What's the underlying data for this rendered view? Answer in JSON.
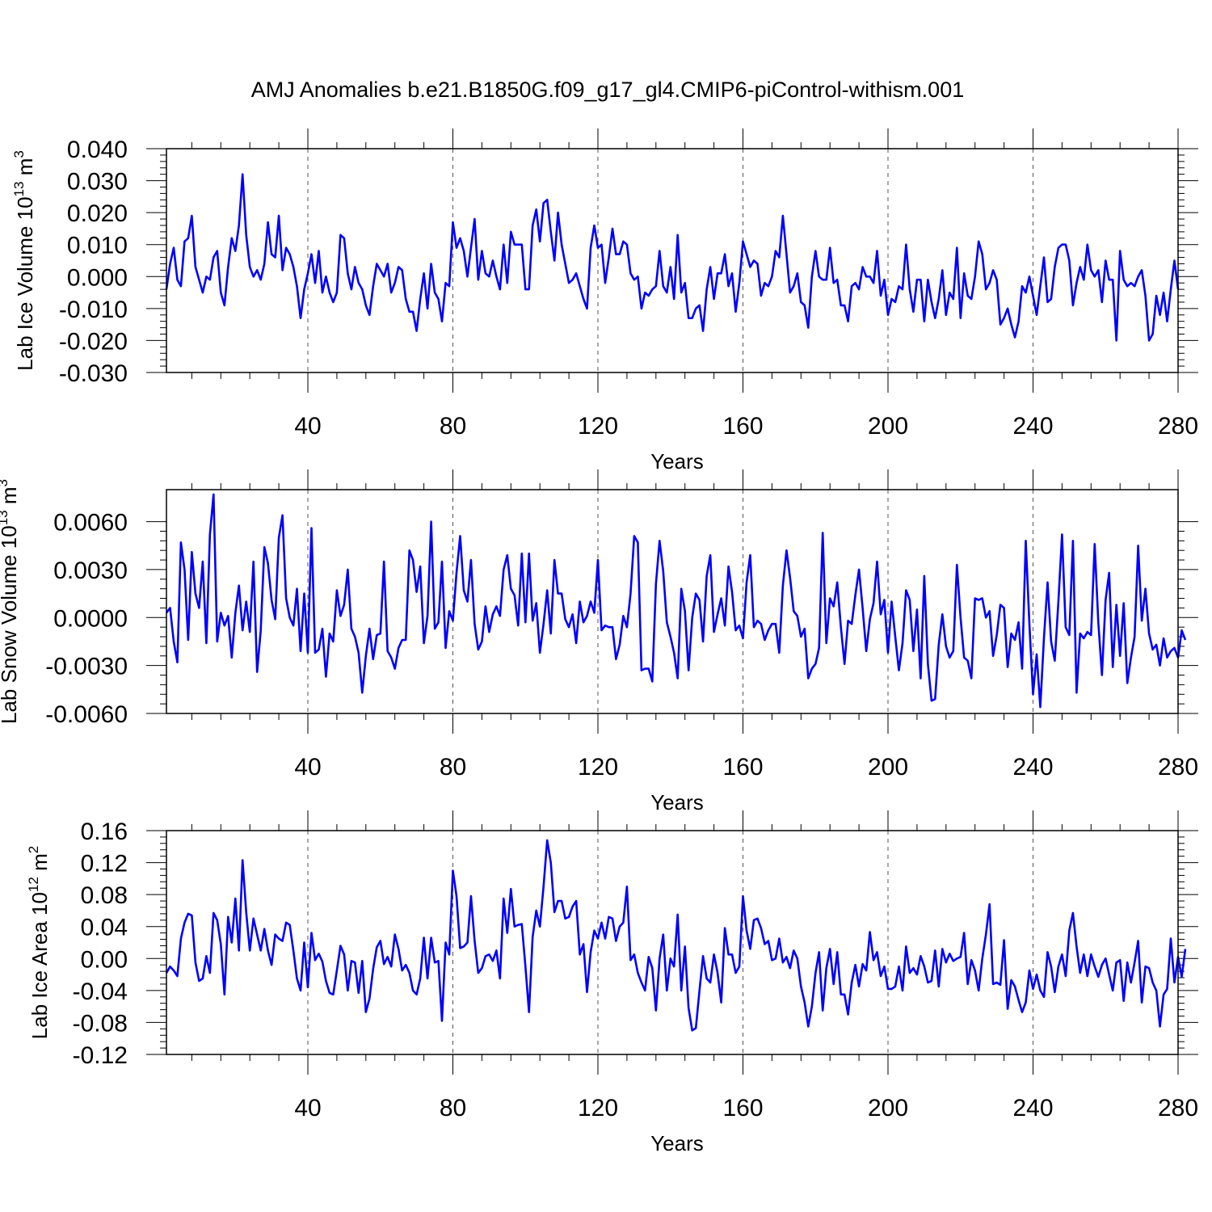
{
  "title": "AMJ Anomalies b.e21.B1850G.f09_g17_gl4.CMIP6-piControl-withism.001",
  "series_color": "#0000ff",
  "chart_data": [
    {
      "type": "line",
      "ylabel": "Lab Ice Volume 10",
      "ylabel_exp": "13",
      "ylabel_unit": " m",
      "ylabel_unit_exp": "3",
      "xlabel": "Years",
      "xlim": [
        1,
        280
      ],
      "ylim": [
        -0.03,
        0.04
      ],
      "xticks": [
        40,
        80,
        120,
        160,
        200,
        240,
        280
      ],
      "xtick_labels": [
        "40",
        "80",
        "120",
        "160",
        "200",
        "240",
        "280"
      ],
      "yticks": [
        -0.03,
        -0.02,
        -0.01,
        0.0,
        0.01,
        0.02,
        0.03,
        0.04
      ],
      "ytick_labels": [
        "-0.030",
        "-0.020",
        "-0.010",
        "0.000",
        "0.010",
        "0.020",
        "0.030",
        "0.040"
      ],
      "grid_x": [
        40,
        80,
        120,
        160,
        200,
        240
      ],
      "x_start": 1,
      "x_step": 1,
      "values": [
        -0.004,
        0.004,
        0.009,
        -0.001,
        -0.003,
        0.011,
        0.012,
        0.019,
        0.003,
        -0.001,
        -0.005,
        0.0,
        -0.001,
        0.006,
        0.008,
        -0.005,
        -0.009,
        0.003,
        0.012,
        0.008,
        0.016,
        0.032,
        0.013,
        0.003,
        0.0,
        0.002,
        -0.001,
        0.004,
        0.017,
        0.007,
        0.006,
        0.019,
        0.002,
        0.009,
        0.007,
        0.003,
        -0.003,
        -0.013,
        -0.004,
        0.001,
        0.007,
        -0.002,
        0.008,
        -0.005,
        0.0,
        -0.005,
        -0.008,
        -0.005,
        0.013,
        0.012,
        0.001,
        -0.004,
        0.003,
        -0.002,
        -0.004,
        -0.009,
        -0.012,
        -0.003,
        0.004,
        0.002,
        0.0,
        0.004,
        -0.005,
        -0.002,
        0.003,
        0.002,
        -0.007,
        -0.011,
        -0.011,
        -0.017,
        -0.007,
        0.001,
        -0.01,
        0.004,
        -0.005,
        -0.007,
        -0.014,
        -0.002,
        -0.003,
        0.017,
        0.009,
        0.012,
        0.008,
        0.0,
        0.009,
        0.018,
        -0.001,
        0.008,
        0.001,
        0.0,
        0.005,
        0.0,
        -0.004,
        0.01,
        -0.002,
        0.014,
        0.01,
        0.01,
        0.01,
        -0.004,
        -0.004,
        0.016,
        0.021,
        0.011,
        0.023,
        0.024,
        0.014,
        0.005,
        0.02,
        0.01,
        0.004,
        -0.002,
        -0.001,
        0.001,
        -0.003,
        -0.007,
        -0.01,
        0.009,
        0.016,
        0.009,
        0.01,
        -0.002,
        0.006,
        0.015,
        0.007,
        0.007,
        0.011,
        0.01,
        0.001,
        -0.001,
        0.0,
        -0.01,
        -0.005,
        -0.006,
        -0.004,
        -0.003,
        0.008,
        -0.003,
        -0.005,
        0.003,
        -0.007,
        0.013,
        -0.005,
        -0.002,
        -0.013,
        -0.013,
        -0.01,
        -0.009,
        -0.017,
        -0.004,
        0.003,
        -0.007,
        0.001,
        0.001,
        0.007,
        -0.003,
        0.001,
        -0.011,
        -0.002,
        0.011,
        0.007,
        0.003,
        0.005,
        0.004,
        -0.006,
        -0.002,
        -0.003,
        0.0,
        0.008,
        0.006,
        0.019,
        0.007,
        -0.005,
        -0.003,
        0.001,
        -0.008,
        -0.009,
        -0.016,
        0.0,
        0.008,
        0.0,
        -0.001,
        -0.001,
        0.009,
        -0.002,
        -0.001,
        -0.009,
        -0.009,
        -0.014,
        -0.003,
        -0.002,
        -0.004,
        0.003,
        0.0,
        0.0,
        -0.002,
        0.008,
        -0.006,
        -0.001,
        -0.012,
        -0.007,
        -0.008,
        -0.003,
        -0.004,
        0.01,
        -0.004,
        -0.011,
        -0.001,
        -0.001,
        -0.014,
        -0.001,
        -0.008,
        -0.013,
        -0.007,
        0.002,
        -0.012,
        -0.005,
        -0.007,
        0.009,
        -0.013,
        0.001,
        -0.006,
        -0.007,
        0.0,
        0.011,
        0.007,
        -0.004,
        -0.002,
        0.002,
        -0.001,
        -0.015,
        -0.013,
        -0.01,
        -0.015,
        -0.019,
        -0.014,
        -0.003,
        -0.005,
        0.0,
        -0.006,
        -0.012,
        -0.003,
        0.006,
        -0.008,
        -0.007,
        0.003,
        0.009,
        0.01,
        0.01,
        0.005,
        -0.009,
        -0.002,
        0.003,
        -0.001,
        0.01,
        0.002,
        0.0,
        0.002,
        -0.008,
        0.005,
        -0.001,
        -0.001,
        -0.02,
        0.008,
        -0.001,
        -0.003,
        -0.002,
        -0.003,
        0.0,
        0.002,
        -0.006,
        -0.02,
        -0.018,
        -0.006,
        -0.012,
        -0.005,
        -0.014,
        -0.004,
        0.005,
        -0.004
      ]
    },
    {
      "type": "line",
      "ylabel": "Lab Snow Volume 10",
      "ylabel_exp": "13",
      "ylabel_unit": " m",
      "ylabel_unit_exp": "3",
      "xlabel": "Years",
      "xlim": [
        1,
        280
      ],
      "ylim": [
        -0.006,
        0.008
      ],
      "xticks": [
        40,
        80,
        120,
        160,
        200,
        240,
        280
      ],
      "xtick_labels": [
        "40",
        "80",
        "120",
        "160",
        "200",
        "240",
        "280"
      ],
      "yticks": [
        -0.006,
        -0.003,
        0.0,
        0.003,
        0.006
      ],
      "ytick_labels": [
        "-0.0060",
        "-0.0030",
        "0.0000",
        "0.0030",
        "0.0060"
      ],
      "grid_x": [
        40,
        80,
        120,
        160,
        200,
        240
      ],
      "x_start": 1,
      "x_step": 1,
      "values": [
        0.0003,
        0.0006,
        -0.0015,
        -0.0028,
        0.0047,
        0.003,
        -0.0014,
        0.0041,
        0.0015,
        0.0006,
        0.0035,
        -0.0016,
        0.0052,
        0.0077,
        -0.0015,
        0.0003,
        -0.0005,
        0.0001,
        -0.0025,
        0.0003,
        0.002,
        -0.0008,
        0.001,
        -0.0009,
        0.0035,
        -0.0034,
        -0.0008,
        0.0044,
        0.0034,
        0.0011,
        -0.0001,
        0.005,
        0.0064,
        0.0012,
        0.0,
        -0.0005,
        0.0018,
        -0.0021,
        0.0015,
        -0.0022,
        0.0056,
        -0.0022,
        -0.002,
        -0.0007,
        -0.0037,
        -0.001,
        -0.0015,
        0.0017,
        0.0001,
        0.0008,
        0.003,
        -0.0007,
        -0.0012,
        -0.0022,
        -0.0047,
        -0.0024,
        -0.0007,
        -0.0026,
        -0.0011,
        -0.001,
        0.0035,
        -0.0021,
        -0.0025,
        -0.0032,
        -0.0019,
        -0.0014,
        -0.0014,
        0.0042,
        0.0036,
        0.0016,
        0.0032,
        -0.0016,
        0.0001,
        0.006,
        -0.0007,
        -0.0003,
        0.0035,
        -0.0019,
        0.0004,
        -0.0002,
        0.0028,
        0.0051,
        0.0017,
        0.001,
        0.0036,
        -0.0004,
        -0.002,
        -0.0015,
        0.0007,
        -0.0009,
        0.0002,
        0.0007,
        0.0001,
        0.003,
        0.0039,
        0.0018,
        0.0014,
        -0.0005,
        0.004,
        -0.0003,
        0.004,
        -0.0002,
        0.0009,
        -0.0022,
        -0.0004,
        0.0017,
        -0.001,
        0.0036,
        0.0015,
        0.0015,
        -0.0001,
        -0.0006,
        0.0002,
        -0.0016,
        0.001,
        -0.0003,
        0.0001,
        0.001,
        0.0003,
        0.0036,
        -0.0008,
        -0.0005,
        -0.0006,
        -0.0006,
        -0.0026,
        -0.0017,
        0.0001,
        -0.0006,
        0.0015,
        0.0051,
        0.0047,
        -0.0033,
        -0.0032,
        -0.0032,
        -0.004,
        0.0021,
        0.0048,
        0.0029,
        -0.0003,
        -0.0012,
        -0.0022,
        -0.0038,
        0.0018,
        0.0004,
        -0.0033,
        0.0,
        0.0015,
        0.0011,
        -0.0015,
        0.0026,
        0.0039,
        -0.0009,
        0.0002,
        0.0012,
        -0.0005,
        0.0032,
        0.0016,
        -0.0008,
        -0.0005,
        -0.0013,
        0.0022,
        0.0039,
        -0.0006,
        -0.0002,
        -0.0004,
        -0.0014,
        -0.0008,
        -0.0004,
        -0.0004,
        -0.0022,
        0.002,
        0.0042,
        0.0025,
        0.0004,
        0.0001,
        -0.0012,
        -0.0007,
        -0.0038,
        -0.0032,
        -0.0029,
        -0.0019,
        0.0053,
        -0.0016,
        0.0012,
        0.0007,
        0.0022,
        -0.0006,
        -0.0029,
        -0.0002,
        -0.0004,
        0.0014,
        0.003,
        0.0006,
        -0.0021,
        -0.0001,
        0.0009,
        0.0035,
        0.0002,
        0.0011,
        -0.0022,
        0.001,
        -0.0012,
        -0.0033,
        -0.0016,
        0.0017,
        0.0011,
        -0.0021,
        0.0005,
        -0.0038,
        0.0026,
        -0.0029,
        -0.0052,
        -0.0051,
        -0.0017,
        0.0002,
        -0.0018,
        -0.0025,
        -0.0021,
        0.0033,
        0.0,
        -0.0025,
        -0.0027,
        -0.0038,
        0.0012,
        0.0011,
        0.0012,
        0.0,
        0.0004,
        -0.0024,
        -0.0011,
        0.0008,
        0.0006,
        -0.0031,
        -0.001,
        -0.0014,
        -0.0003,
        -0.0032,
        0.0048,
        -0.0004,
        -0.0048,
        -0.0023,
        -0.0056,
        -0.0013,
        0.0022,
        -0.0015,
        -0.0027,
        0.001,
        0.0052,
        -0.0006,
        -0.0011,
        0.0048,
        -0.0047,
        -0.001,
        -0.0013,
        -0.0009,
        -0.0011,
        0.0046,
        -0.0003,
        -0.0036,
        0.0011,
        0.0028,
        -0.0031,
        0.0008,
        -0.0024,
        0.0009,
        -0.0041,
        -0.0025,
        -0.0012,
        0.0045,
        -0.0002,
        0.0018,
        -0.001,
        -0.002,
        -0.0017,
        -0.003,
        -0.0013,
        -0.0025,
        -0.0021,
        -0.0019,
        -0.0025,
        -0.0008,
        -0.0014
      ]
    },
    {
      "type": "line",
      "ylabel": "Lab Ice Area 10",
      "ylabel_exp": "12",
      "ylabel_unit": " m",
      "ylabel_unit_exp": "2",
      "xlabel": "Years",
      "xlim": [
        1,
        280
      ],
      "ylim": [
        -0.12,
        0.16
      ],
      "xticks": [
        40,
        80,
        120,
        160,
        200,
        240,
        280
      ],
      "xtick_labels": [
        "40",
        "80",
        "120",
        "160",
        "200",
        "240",
        "280"
      ],
      "yticks": [
        -0.12,
        -0.08,
        -0.04,
        0.0,
        0.04,
        0.08,
        0.12,
        0.16
      ],
      "ytick_labels": [
        "-0.12",
        "-0.08",
        "-0.04",
        "0.00",
        "0.04",
        "0.08",
        "0.12",
        "0.16"
      ],
      "grid_x": [
        40,
        80,
        120,
        160,
        200,
        240
      ],
      "x_start": 1,
      "x_step": 1,
      "values": [
        -0.018,
        -0.01,
        -0.015,
        -0.022,
        0.025,
        0.045,
        0.056,
        0.054,
        -0.005,
        -0.028,
        -0.025,
        0.003,
        -0.018,
        0.057,
        0.048,
        0.018,
        -0.045,
        0.052,
        0.02,
        0.075,
        0.01,
        0.123,
        0.058,
        0.01,
        0.05,
        0.03,
        0.01,
        0.037,
        0.01,
        -0.008,
        0.03,
        0.025,
        0.022,
        0.045,
        0.042,
        0.01,
        -0.025,
        -0.04,
        0.02,
        -0.036,
        0.032,
        -0.002,
        0.006,
        -0.004,
        -0.028,
        -0.043,
        -0.045,
        -0.015,
        0.016,
        0.005,
        -0.04,
        -0.003,
        -0.005,
        -0.043,
        -0.003,
        -0.067,
        -0.05,
        -0.013,
        0.014,
        0.022,
        -0.007,
        0.002,
        -0.01,
        0.03,
        0.012,
        -0.015,
        -0.008,
        -0.018,
        -0.04,
        -0.045,
        -0.025,
        0.026,
        -0.025,
        0.026,
        -0.005,
        -0.003,
        -0.078,
        0.02,
        0.005,
        0.11,
        0.078,
        0.013,
        0.015,
        0.02,
        0.078,
        0.022,
        -0.018,
        -0.012,
        0.003,
        0.005,
        -0.003,
        0.01,
        -0.025,
        0.075,
        0.032,
        0.087,
        0.04,
        0.042,
        0.043,
        -0.01,
        -0.067,
        0.027,
        0.06,
        0.04,
        0.09,
        0.148,
        0.12,
        0.058,
        0.072,
        0.072,
        0.05,
        0.052,
        0.065,
        0.072,
        0.005,
        0.018,
        -0.042,
        0.008,
        0.035,
        0.025,
        0.045,
        0.025,
        0.052,
        0.05,
        0.022,
        0.04,
        0.045,
        0.09,
        -0.002,
        0.005,
        -0.018,
        -0.03,
        -0.04,
        0.002,
        -0.012,
        -0.065,
        0.0,
        0.03,
        -0.04,
        0.0,
        -0.01,
        0.055,
        -0.04,
        0.015,
        -0.062,
        -0.09,
        -0.087,
        -0.04,
        0.003,
        -0.025,
        -0.03,
        0.005,
        -0.018,
        -0.055,
        0.038,
        0.005,
        0.005,
        -0.018,
        -0.01,
        0.078,
        0.035,
        0.012,
        0.048,
        0.05,
        0.038,
        0.018,
        0.022,
        -0.002,
        0.0,
        0.025,
        -0.005,
        0.002,
        -0.012,
        0.01,
        0.0,
        -0.035,
        -0.055,
        -0.085,
        -0.06,
        -0.018,
        0.008,
        -0.065,
        -0.012,
        0.012,
        -0.032,
        0.008,
        -0.045,
        -0.045,
        -0.07,
        -0.03,
        -0.008,
        -0.035,
        -0.007,
        -0.015,
        0.033,
        -0.002,
        0.008,
        -0.022,
        -0.01,
        -0.038,
        -0.038,
        -0.035,
        -0.01,
        -0.04,
        0.015,
        -0.018,
        -0.012,
        -0.02,
        0.003,
        -0.01,
        -0.03,
        -0.028,
        0.01,
        -0.035,
        0.012,
        -0.005,
        0.006,
        -0.003,
        0.0,
        0.002,
        0.032,
        -0.032,
        -0.002,
        -0.015,
        -0.04,
        0.0,
        0.03,
        0.068,
        -0.032,
        -0.03,
        -0.033,
        0.023,
        -0.063,
        -0.027,
        -0.035,
        -0.052,
        -0.067,
        -0.055,
        -0.015,
        -0.038,
        -0.02,
        -0.04,
        -0.048,
        0.008,
        -0.01,
        -0.042,
        -0.01,
        0.005,
        -0.022,
        0.035,
        0.057,
        0.015,
        -0.018,
        0.005,
        -0.022,
        0.005,
        -0.01,
        -0.023,
        -0.008,
        0.0,
        -0.02,
        -0.04,
        -0.005,
        -0.002,
        -0.053,
        -0.005,
        -0.03,
        -0.005,
        0.022,
        -0.055,
        -0.01,
        -0.012,
        -0.03,
        -0.04,
        -0.085,
        -0.045,
        -0.038,
        0.025,
        -0.03,
        0.002,
        -0.023,
        0.012
      ]
    }
  ]
}
